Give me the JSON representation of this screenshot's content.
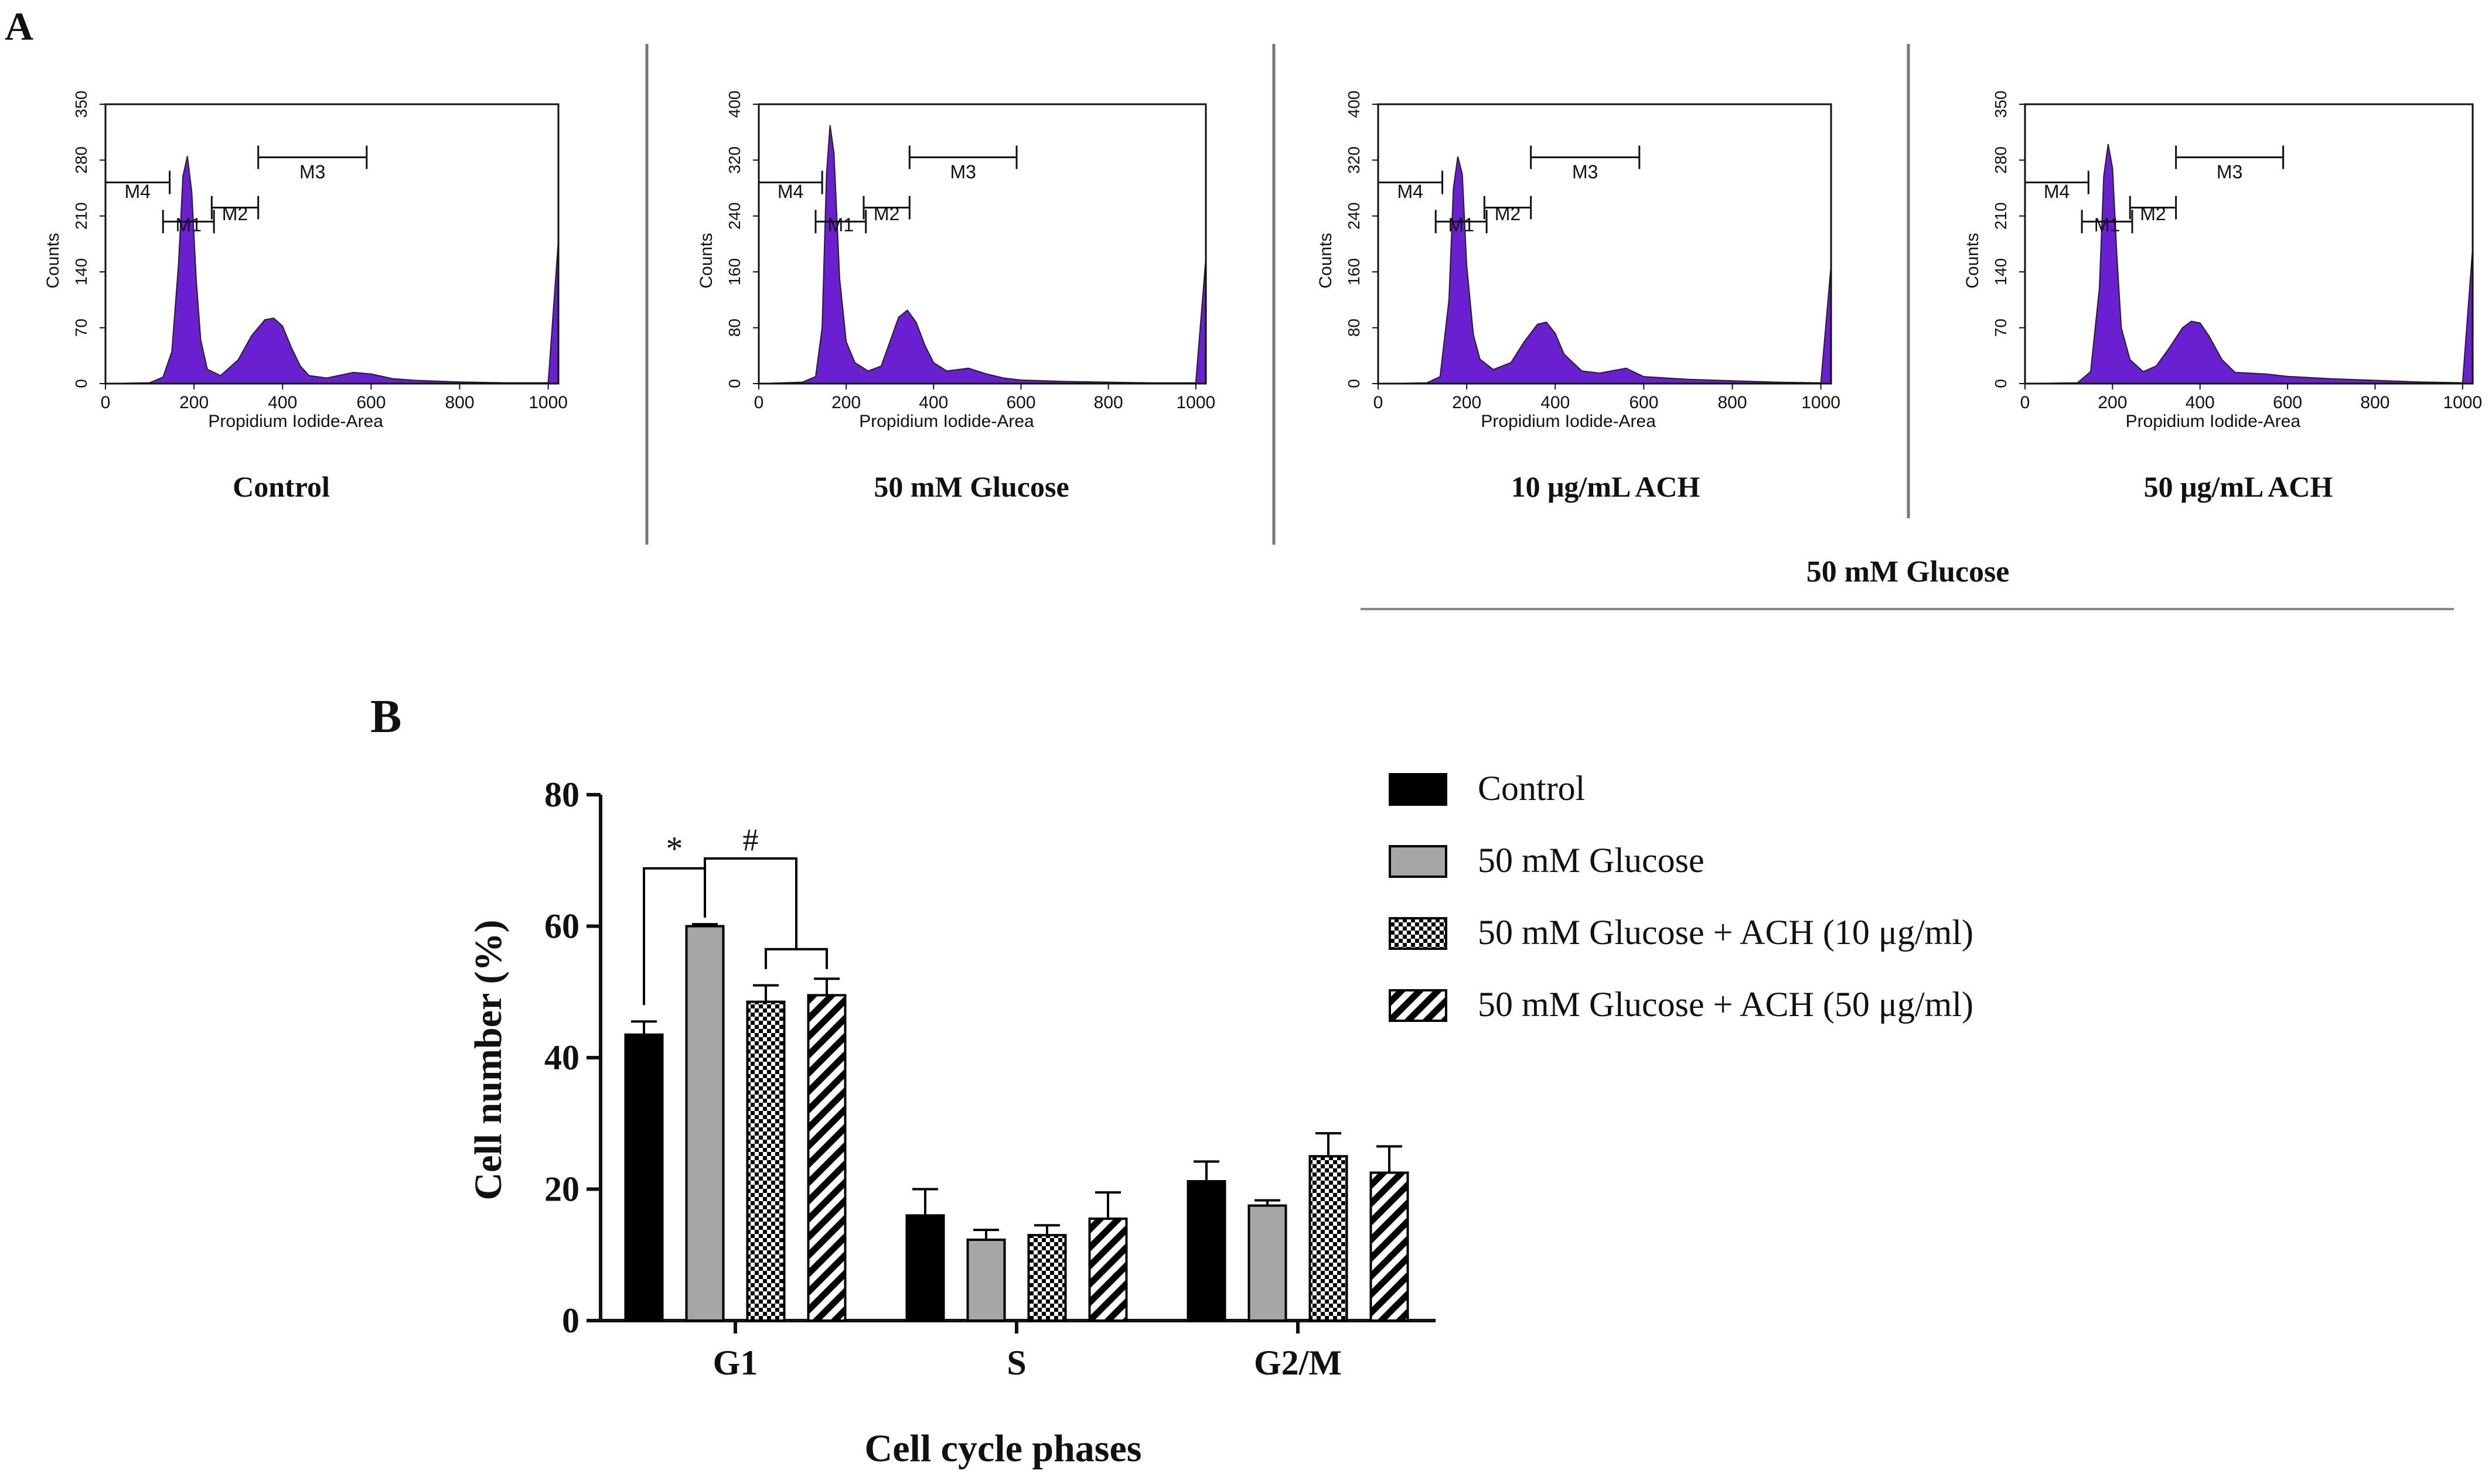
{
  "panel_a_label": "A",
  "panel_b_label": "B",
  "histograms": [
    {
      "caption": "Control",
      "counts_label": "Counts",
      "x_label": "Propidium Iodide-Area",
      "y_ticks": [
        "0",
        "70",
        "140",
        "210",
        "280",
        "350"
      ],
      "x_ticks": [
        "0",
        "200",
        "400",
        "600",
        "800",
        "1000"
      ],
      "markers": [
        "M4",
        "M1",
        "M2",
        "M3"
      ]
    },
    {
      "caption": "50 mM Glucose",
      "counts_label": "Counts",
      "x_label": "Propidium Iodide-Area",
      "y_ticks": [
        "0",
        "80",
        "160",
        "240",
        "320",
        "400"
      ],
      "x_ticks": [
        "0",
        "200",
        "400",
        "600",
        "800",
        "1000"
      ],
      "markers": [
        "M4",
        "M1",
        "M2",
        "M3"
      ]
    },
    {
      "caption": "10 μg/mL ACH",
      "counts_label": "Counts",
      "x_label": "Propidium Iodide-Area",
      "y_ticks": [
        "0",
        "80",
        "160",
        "240",
        "320",
        "400"
      ],
      "x_ticks": [
        "0",
        "200",
        "400",
        "600",
        "800",
        "1000"
      ],
      "markers": [
        "M4",
        "M1",
        "M2",
        "M3"
      ]
    },
    {
      "caption": "50 μg/mL ACH",
      "counts_label": "Counts",
      "x_label": "Propidium Iodide-Area",
      "y_ticks": [
        "0",
        "70",
        "140",
        "210",
        "280",
        "350"
      ],
      "x_ticks": [
        "0",
        "200",
        "400",
        "600",
        "800",
        "1000"
      ],
      "markers": [
        "M4",
        "M1",
        "M2",
        "M3"
      ]
    }
  ],
  "group_caption": "50 mM Glucose",
  "colors": {
    "histogram_fill": "#6a1fd1",
    "control_bar": "#000000",
    "glucose_bar": "#a6a6a6",
    "axis": "#111111"
  },
  "chart_data": [
    {
      "type": "histogram",
      "title": "Control",
      "xlabel": "Propidium Iodide-Area",
      "ylabel": "Counts",
      "xlim": [
        0,
        1023
      ],
      "ylim": [
        0,
        350
      ],
      "x": [
        0,
        100,
        130,
        150,
        165,
        175,
        185,
        195,
        205,
        215,
        230,
        260,
        300,
        330,
        360,
        380,
        400,
        420,
        440,
        460,
        500,
        560,
        600,
        650,
        700,
        800,
        900,
        1000,
        1023
      ],
      "y": [
        0,
        1,
        8,
        40,
        150,
        260,
        285,
        240,
        130,
        55,
        18,
        10,
        30,
        60,
        80,
        82,
        72,
        45,
        22,
        10,
        7,
        14,
        12,
        6,
        4,
        2,
        1,
        1,
        180
      ]
    },
    {
      "type": "histogram",
      "title": "50 mM Glucose",
      "xlabel": "Propidium Iodide-Area",
      "ylabel": "Counts",
      "xlim": [
        0,
        1023
      ],
      "ylim": [
        0,
        400
      ],
      "x": [
        0,
        100,
        130,
        145,
        155,
        163,
        172,
        185,
        200,
        220,
        250,
        280,
        300,
        320,
        340,
        360,
        380,
        400,
        430,
        480,
        520,
        560,
        600,
        700,
        800,
        900,
        1000,
        1023
      ],
      "y": [
        0,
        2,
        10,
        80,
        300,
        370,
        330,
        150,
        60,
        30,
        18,
        25,
        60,
        95,
        105,
        88,
        55,
        30,
        18,
        22,
        14,
        8,
        5,
        3,
        2,
        1,
        1,
        180
      ]
    },
    {
      "type": "histogram",
      "title": "10 μg/mL ACH",
      "xlabel": "Propidium Iodide-Area",
      "ylabel": "Counts",
      "xlim": [
        0,
        1023
      ],
      "ylim": [
        0,
        400
      ],
      "x": [
        0,
        110,
        140,
        160,
        170,
        180,
        190,
        200,
        215,
        230,
        260,
        300,
        330,
        360,
        380,
        400,
        420,
        460,
        500,
        560,
        600,
        700,
        800,
        900,
        1000,
        1023
      ],
      "y": [
        0,
        1,
        10,
        120,
        280,
        325,
        300,
        170,
        70,
        35,
        20,
        30,
        60,
        85,
        88,
        72,
        42,
        18,
        15,
        22,
        10,
        6,
        4,
        2,
        1,
        170
      ]
    },
    {
      "type": "histogram",
      "title": "50 μg/mL ACH",
      "xlabel": "Propidium Iodide-Area",
      "ylabel": "Counts",
      "xlim": [
        0,
        1023
      ],
      "ylim": [
        0,
        350
      ],
      "x": [
        0,
        120,
        150,
        170,
        180,
        190,
        200,
        210,
        220,
        240,
        270,
        300,
        330,
        360,
        380,
        400,
        420,
        450,
        480,
        550,
        600,
        700,
        800,
        900,
        1000,
        1023
      ],
      "y": [
        0,
        1,
        15,
        120,
        260,
        300,
        270,
        160,
        70,
        30,
        15,
        22,
        45,
        70,
        78,
        76,
        60,
        30,
        14,
        12,
        9,
        6,
        4,
        2,
        1,
        170
      ]
    },
    {
      "type": "bar",
      "title": "",
      "xlabel": "Cell cycle phases",
      "ylabel": "Cell number (%)",
      "ylim": [
        0,
        80
      ],
      "yticks": [
        "0",
        "20",
        "40",
        "60",
        "80"
      ],
      "categories": [
        "G1",
        "S",
        "G2/M"
      ],
      "series": [
        {
          "name": "Control",
          "pattern": "solid-black",
          "values": [
            43.5,
            16.0,
            21.2
          ],
          "errors": [
            2.0,
            4.0,
            3.0
          ]
        },
        {
          "name": "50 mM Glucose",
          "pattern": "solid-gray",
          "values": [
            60.0,
            12.3,
            17.5
          ],
          "errors": [
            0.3,
            1.5,
            0.8
          ]
        },
        {
          "name": "50 mM Glucose + ACH (10 μg/ml)",
          "pattern": "checker",
          "values": [
            48.5,
            13.0,
            25.0
          ],
          "errors": [
            2.5,
            1.5,
            3.5
          ]
        },
        {
          "name": "50 mM Glucose + ACH (50 μg/ml)",
          "pattern": "diagonal",
          "values": [
            49.5,
            15.5,
            22.5
          ],
          "errors": [
            2.5,
            4.0,
            4.0
          ]
        }
      ],
      "legend_position": "top-right",
      "annotations": [
        "*",
        "#"
      ]
    }
  ]
}
